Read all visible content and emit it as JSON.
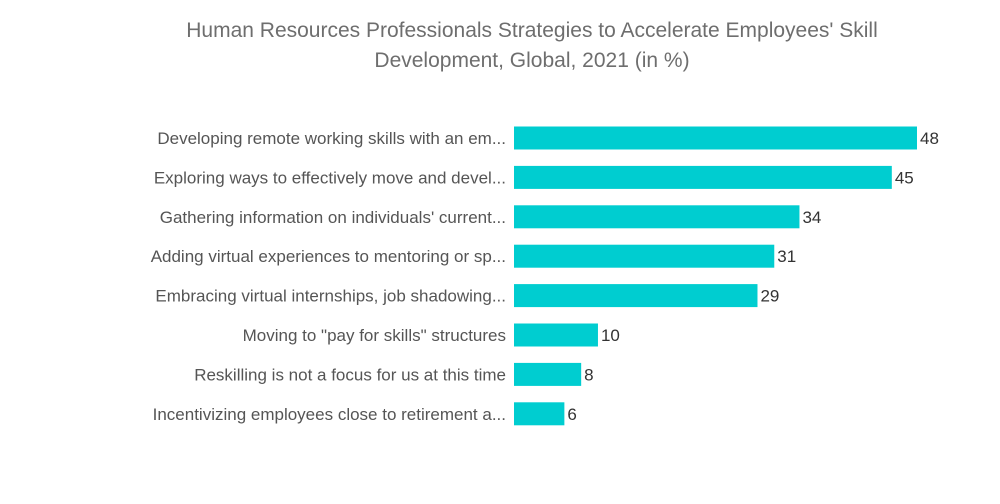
{
  "chart_data": {
    "type": "bar",
    "orientation": "horizontal",
    "title_lines": [
      "Human Resources Professionals Strategies to Accelerate Employees' Skill",
      "Development, Global, 2021 (in %)"
    ],
    "categories": [
      "Developing remote working skills with an em...",
      "Exploring ways to effectively move and devel...",
      "Gathering information on individuals' current...",
      "Adding virtual experiences to mentoring or sp...",
      "Embracing virtual internships, job shadowing...",
      "Moving to \"pay for skills\" structures",
      "Reskilling is not a focus for us at this time",
      "Incentivizing employees close to retirement a..."
    ],
    "values": [
      48,
      45,
      34,
      31,
      29,
      10,
      8,
      6
    ],
    "xlim": [
      0,
      48
    ],
    "bar_color": "#00cdd0",
    "grid": false,
    "legend": "none",
    "data_labels": true
  }
}
